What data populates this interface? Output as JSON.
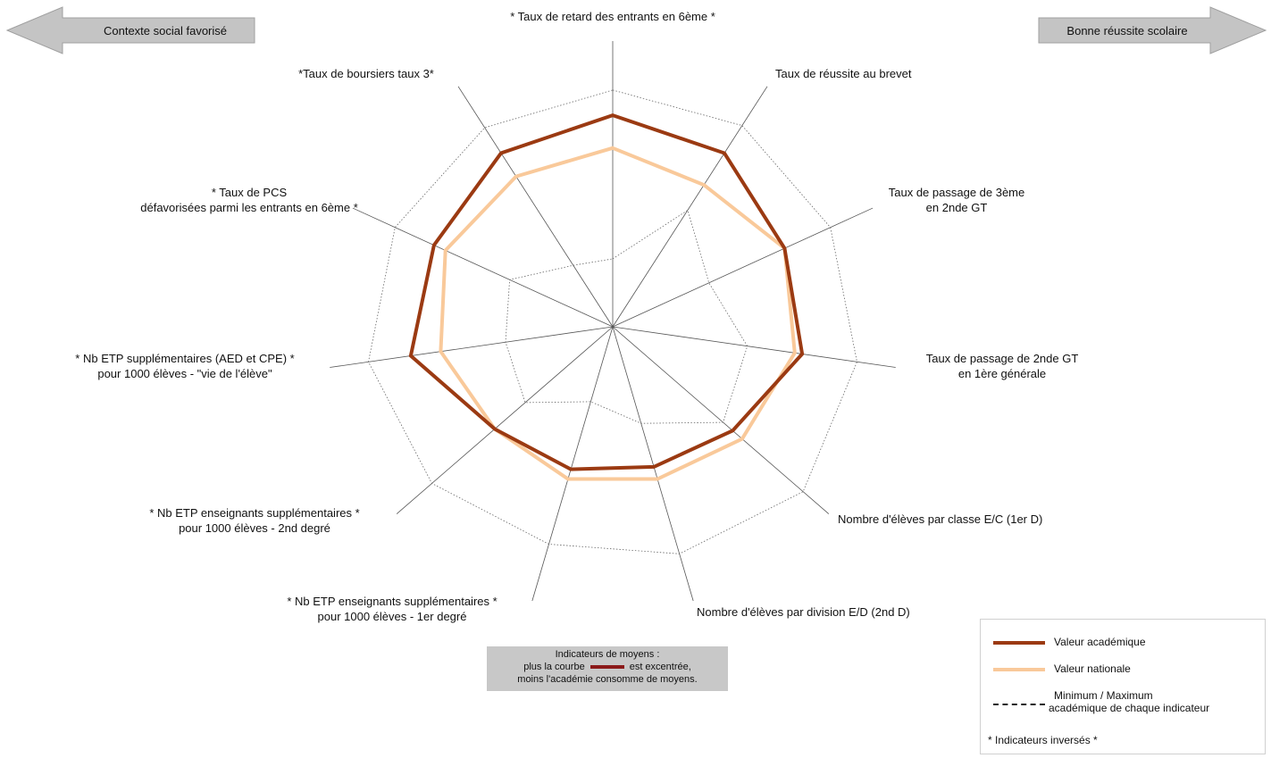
{
  "chart_data": {
    "type": "radar",
    "title": "",
    "arrows": {
      "left": "Contexte social favorisé",
      "right": "Bonne réussite scolaire"
    },
    "axes": [
      [
        "* Taux de retard des entrants en 6ème *"
      ],
      [
        "Taux de réussite au brevet"
      ],
      [
        "Taux de passage de 3ème",
        "en 2nde GT"
      ],
      [
        "Taux de passage de 2nde GT",
        "en 1ère générale"
      ],
      [
        "Nombre d'élèves par classe E/C (1er D)"
      ],
      [
        "Nombre d'élèves par division E/D (2nd D)"
      ],
      [
        "* Nb ETP enseignants supplémentaires *",
        "pour 1000 élèves - 1er degré"
      ],
      [
        "* Nb ETP enseignants supplémentaires *",
        "pour 1000 élèves - 2nd degré"
      ],
      [
        "* Nb ETP supplémentaires (AED et CPE) *",
        "pour 1000 élèves - \"vie de l'élève\""
      ],
      [
        "* Taux de PCS",
        "défavorisées parmi les entrants en 6ème *"
      ],
      [
        "*Taux de boursiers taux 3*"
      ]
    ],
    "scale_max": 100,
    "series": [
      {
        "name": "Valeur académique",
        "color": "#9b3a12",
        "values": [
          84,
          82,
          75,
          76,
          63,
          58,
          59,
          62,
          81,
          78,
          82
        ]
      },
      {
        "name": "Valeur nationale",
        "color": "#f9c99a",
        "values": [
          71,
          67,
          75,
          73,
          68,
          63,
          63,
          62,
          69,
          73,
          71
        ]
      },
      {
        "name": "Minimum",
        "values": [
          27,
          55,
          42,
          54,
          58,
          40,
          31,
          46,
          43,
          45,
          29
        ]
      },
      {
        "name": "Maximum",
        "values": [
          94,
          95,
          95,
          98,
          100,
          94,
          90,
          95,
          98,
          95,
          94
        ]
      }
    ]
  },
  "note": {
    "line1": "Indicateurs de moyens :",
    "line2a": "plus la courbe",
    "line2b": "est excentrée,",
    "line3": "moins l'académie consomme de moyens."
  },
  "legend": {
    "academique": "Valeur académique",
    "nationale": "Valeur nationale",
    "minmax1": "Minimum / Maximum",
    "minmax2": "académique  de chaque indicateur",
    "inverses": "* Indicateurs inversés *"
  }
}
